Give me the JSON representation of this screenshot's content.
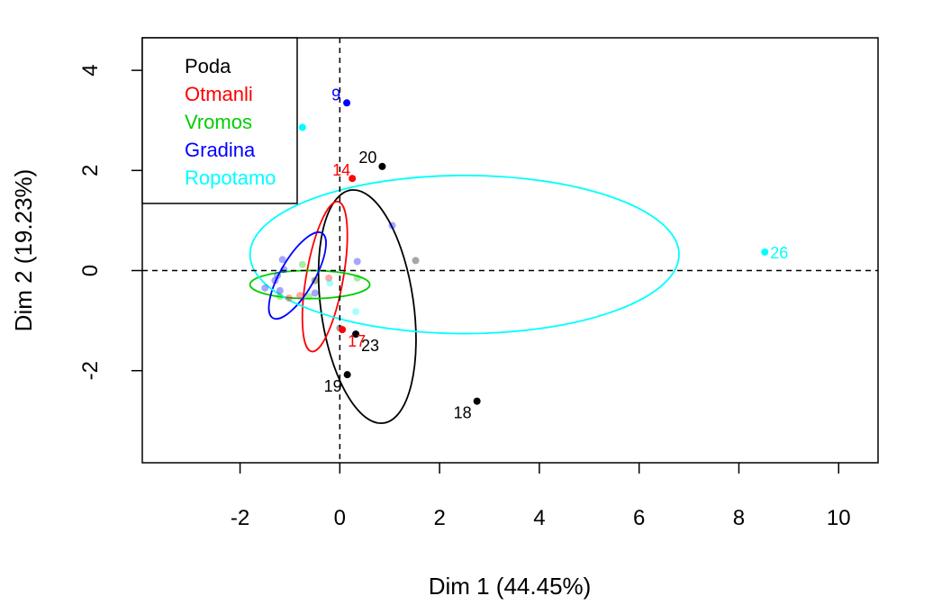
{
  "chart_data": {
    "type": "scatter",
    "xlabel": "Dim 1 (44.45%)",
    "ylabel": "Dim 2 (19.23%)",
    "xlim": [
      -3.96,
      10.79
    ],
    "ylim": [
      -3.84,
      4.65
    ],
    "xticks": [
      -2,
      0,
      2,
      4,
      6,
      8,
      10
    ],
    "yticks": [
      -2,
      0,
      2,
      4
    ],
    "reference_lines": {
      "x": 0,
      "y": 0,
      "style": "dashed"
    },
    "legend": {
      "position": "top-left",
      "entries": [
        {
          "name": "Poda",
          "color": "#000000"
        },
        {
          "name": "Otmanli",
          "color": "#ff0000"
        },
        {
          "name": "Vromos",
          "color": "#00cd00"
        },
        {
          "name": "Gradina",
          "color": "#0000ff"
        },
        {
          "name": "Ropotamo",
          "color": "#00ffff"
        }
      ]
    },
    "series": [
      {
        "name": "Poda",
        "color": "#000000",
        "labeled_points": [
          {
            "label": "20",
            "x": 0.85,
            "y": 2.08
          },
          {
            "label": "23",
            "x": 0.32,
            "y": -1.27
          },
          {
            "label": "19",
            "x": 0.15,
            "y": -2.08
          },
          {
            "label": "18",
            "x": 2.75,
            "y": -2.61
          }
        ],
        "faint_points": [
          {
            "x": -0.5,
            "y": -0.2
          },
          {
            "x": 1.52,
            "y": 0.2
          },
          {
            "x": 0.0,
            "y": -1.15
          }
        ],
        "ellipse": {
          "cx": 0.55,
          "cy": -0.72,
          "rx": 0.93,
          "ry": 2.35,
          "rotation_deg": -8
        }
      },
      {
        "name": "Otmanli",
        "color": "#ff0000",
        "labeled_points": [
          {
            "label": "14",
            "x": 0.25,
            "y": 1.84
          },
          {
            "label": "17",
            "x": 0.05,
            "y": -1.18
          }
        ],
        "faint_points": [
          {
            "x": -0.22,
            "y": -0.15
          },
          {
            "x": -0.8,
            "y": -0.5
          },
          {
            "x": -1.02,
            "y": -0.55
          }
        ],
        "ellipse": {
          "cx": -0.3,
          "cy": -0.12,
          "rx": 0.37,
          "ry": 1.52,
          "rotation_deg": 10
        }
      },
      {
        "name": "Vromos",
        "color": "#00cd00",
        "labeled_points": [],
        "faint_points": [
          {
            "x": 0.35,
            "y": -0.15
          },
          {
            "x": -0.62,
            "y": -0.52
          },
          {
            "x": -1.2,
            "y": -0.52
          },
          {
            "x": -0.75,
            "y": 0.12
          }
        ],
        "ellipse": {
          "cx": -0.6,
          "cy": -0.28,
          "rx": 1.2,
          "ry": 0.28,
          "rotation_deg": 0
        }
      },
      {
        "name": "Gradina",
        "color": "#0000ff",
        "labeled_points": [
          {
            "label": "9",
            "x": 0.14,
            "y": 3.35
          }
        ],
        "faint_points": [
          {
            "x": 1.05,
            "y": 0.9
          },
          {
            "x": 0.35,
            "y": 0.18
          },
          {
            "x": -1.15,
            "y": 0.22
          },
          {
            "x": -1.12,
            "y": 0.02
          },
          {
            "x": -1.25,
            "y": -0.1
          },
          {
            "x": -1.3,
            "y": -0.2
          },
          {
            "x": -1.5,
            "y": -0.35
          },
          {
            "x": -1.2,
            "y": -0.4
          },
          {
            "x": -0.5,
            "y": -0.45
          }
        ],
        "ellipse": {
          "cx": -0.85,
          "cy": -0.1,
          "rx": 0.34,
          "ry": 0.98,
          "rotation_deg": 30
        }
      },
      {
        "name": "Ropotamo",
        "color": "#00ffff",
        "labeled_points": [
          {
            "label": "26",
            "x": 8.52,
            "y": 0.37
          }
        ],
        "unlabeled_points": [
          {
            "x": -0.75,
            "y": 2.86
          }
        ],
        "faint_points": [
          {
            "x": 0.32,
            "y": -0.82
          },
          {
            "x": -0.2,
            "y": -0.25
          }
        ],
        "ellipse": {
          "cx": 2.5,
          "cy": 0.32,
          "rx": 4.3,
          "ry": 1.58,
          "rotation_deg": 0
        }
      }
    ]
  }
}
